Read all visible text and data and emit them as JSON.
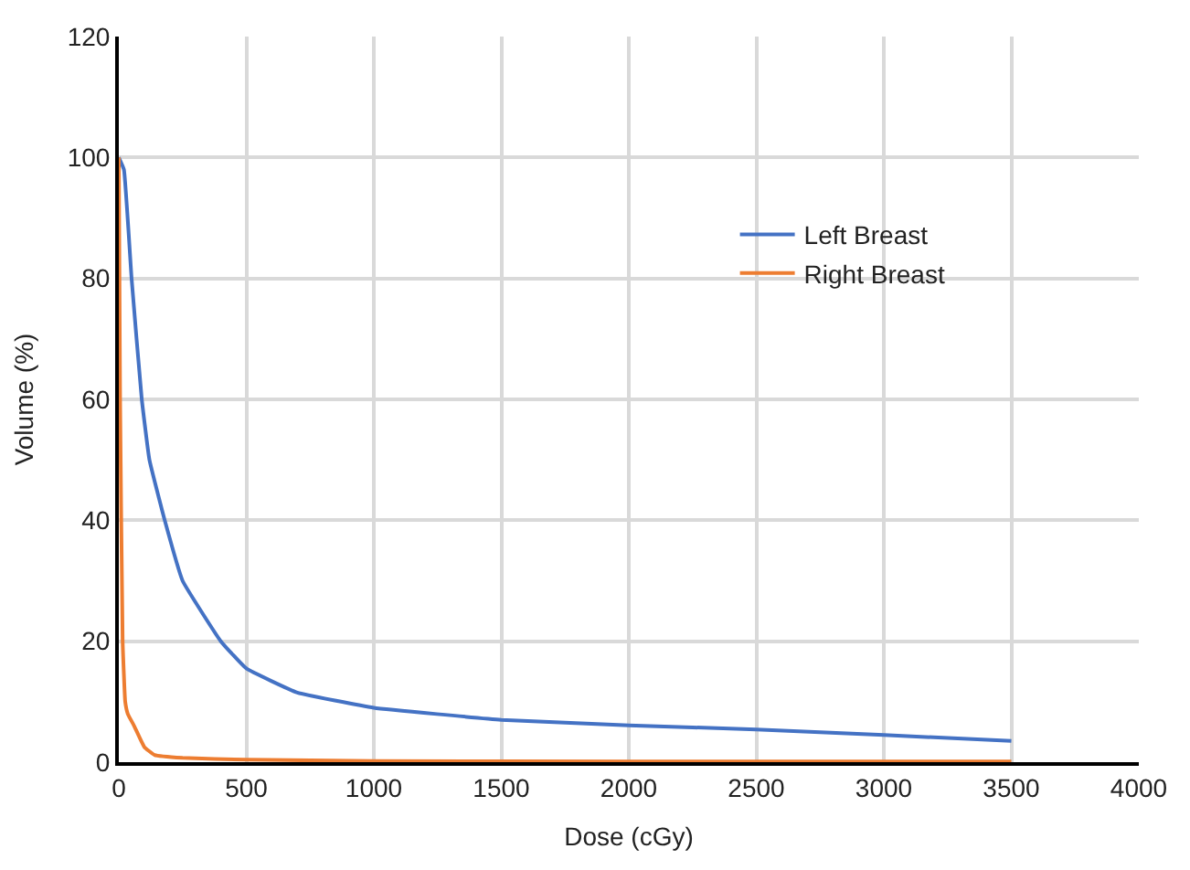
{
  "chart_data": {
    "type": "line",
    "xlabel": "Dose (cGy)",
    "ylabel": "Volume (%)",
    "xlim": [
      0,
      4000
    ],
    "xticks": [
      0,
      500,
      1000,
      1500,
      2000,
      2500,
      3000,
      3500,
      4000
    ],
    "ylim": [
      0,
      120
    ],
    "yticks": [
      0,
      20,
      40,
      60,
      80,
      100,
      120
    ],
    "grid": true,
    "legend": "right",
    "marker": "none",
    "line_style": "solid",
    "series": [
      {
        "name": "Left Breast",
        "color": "#4472c4",
        "x": [
          0,
          20,
          50,
          90,
          120,
          180,
          250,
          400,
          500,
          700,
          1000,
          1500,
          2000,
          2500,
          3000,
          3500
        ],
        "values": [
          100,
          98,
          80,
          60,
          50,
          40,
          30,
          20,
          15.5,
          11.5,
          9,
          7,
          6.1,
          5.4,
          4.5,
          3.5
        ]
      },
      {
        "name": "Right Breast",
        "color": "#ed7d31",
        "x": [
          0,
          5,
          15,
          25,
          35,
          60,
          100,
          140,
          250,
          500,
          1000,
          2000,
          3500
        ],
        "values": [
          100,
          60,
          20,
          10,
          8,
          6,
          2.5,
          1.2,
          0.7,
          0.4,
          0.2,
          0.1,
          0.1
        ]
      }
    ]
  }
}
